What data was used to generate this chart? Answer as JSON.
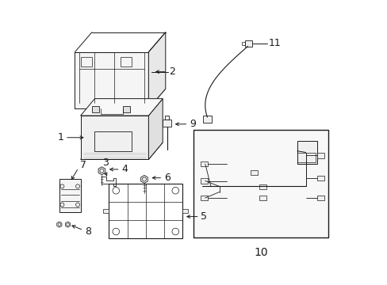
{
  "bg_color": "#ffffff",
  "line_color": "#1a1a1a",
  "label_color": "#000000",
  "fig_width": 4.89,
  "fig_height": 3.6,
  "dpi": 100,
  "font_size": 9
}
